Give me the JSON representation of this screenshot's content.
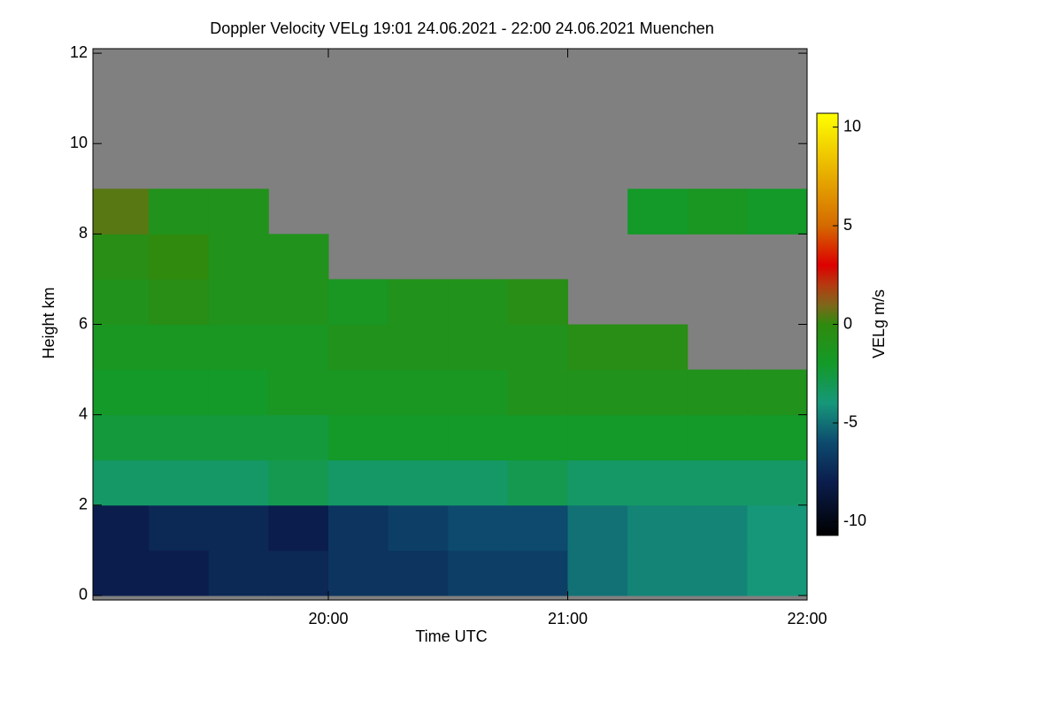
{
  "chart_data": {
    "type": "heatmap",
    "title": "Doppler Velocity VELg   19:01 24.06.2021 - 22:00 24.06.2021 Muenchen",
    "xlabel": "Time UTC",
    "ylabel": "Height km",
    "colorbar_label": "VELg m/s",
    "x_edges": [
      1,
      15,
      30,
      45,
      60,
      75,
      90,
      105,
      120,
      135,
      150,
      165,
      180
    ],
    "y_edges": [
      0,
      1,
      2,
      3,
      4,
      5,
      6,
      7,
      8,
      9,
      10,
      11,
      12
    ],
    "values": [
      [
        -8,
        -8,
        -7.5,
        -7.5,
        -7,
        -7,
        -6.5,
        -6.5,
        -5,
        -4.5,
        -4.5,
        -4
      ],
      [
        -8,
        -7.5,
        -7.5,
        -8,
        -7,
        -6.5,
        -6,
        -6,
        -5,
        -4.5,
        -4.5,
        -4
      ],
      [
        -3.5,
        -3.5,
        -3.5,
        -3,
        -3.5,
        -3.5,
        -3.5,
        -3,
        -3.5,
        -3.5,
        -3.5,
        -3.5
      ],
      [
        -2.5,
        -2.5,
        -2.5,
        -2.5,
        -2,
        -2,
        -2,
        -2,
        -2,
        -2,
        -2,
        -2
      ],
      [
        -2,
        -2,
        -2,
        -1.5,
        -1.5,
        -1.5,
        -1.5,
        -1,
        -1,
        -1,
        -1,
        -1
      ],
      [
        -1.5,
        -1.5,
        -1.5,
        -1.5,
        -1,
        -1,
        -1,
        -1,
        -0.5,
        -0.5,
        null,
        null
      ],
      [
        -1,
        -0.5,
        -1,
        -1,
        -1.5,
        -1,
        -1,
        -0.5,
        null,
        null,
        null,
        null
      ],
      [
        -0.5,
        0,
        -1,
        -1,
        null,
        null,
        null,
        null,
        null,
        null,
        null,
        null
      ],
      [
        0.5,
        -1,
        -1,
        null,
        null,
        null,
        null,
        null,
        null,
        -2,
        -1.5,
        -2
      ],
      [
        null,
        null,
        null,
        null,
        null,
        null,
        null,
        null,
        null,
        null,
        null,
        null
      ],
      [
        null,
        null,
        null,
        null,
        null,
        null,
        null,
        null,
        null,
        null,
        null,
        null
      ],
      [
        null,
        null,
        null,
        null,
        null,
        null,
        null,
        null,
        null,
        null,
        null,
        null
      ]
    ],
    "xlim": [
      1,
      180
    ],
    "xticks": [
      {
        "value": 60,
        "label": "20:00"
      },
      {
        "value": 120,
        "label": "21:00"
      },
      {
        "value": 180,
        "label": "22:00"
      }
    ],
    "ylim": [
      -0.1,
      12.1
    ],
    "yticks": [
      0,
      2,
      4,
      6,
      8,
      10,
      12
    ],
    "zlim": [
      -10.7,
      10.7
    ],
    "zticks": [
      -10,
      -5,
      0,
      5,
      10
    ],
    "missing_color": "#808080",
    "colorscale": [
      [
        -10.7,
        "#000000"
      ],
      [
        -8,
        "#0b1d4d"
      ],
      [
        -6,
        "#0d4a6e"
      ],
      [
        -4,
        "#16977a"
      ],
      [
        -2,
        "#139a28"
      ],
      [
        0,
        "#2f8a0e"
      ],
      [
        1,
        "#80661a"
      ],
      [
        2,
        "#b53a10"
      ],
      [
        3,
        "#dd0000"
      ],
      [
        5,
        "#d46a00"
      ],
      [
        10.7,
        "#ffff00"
      ]
    ]
  }
}
